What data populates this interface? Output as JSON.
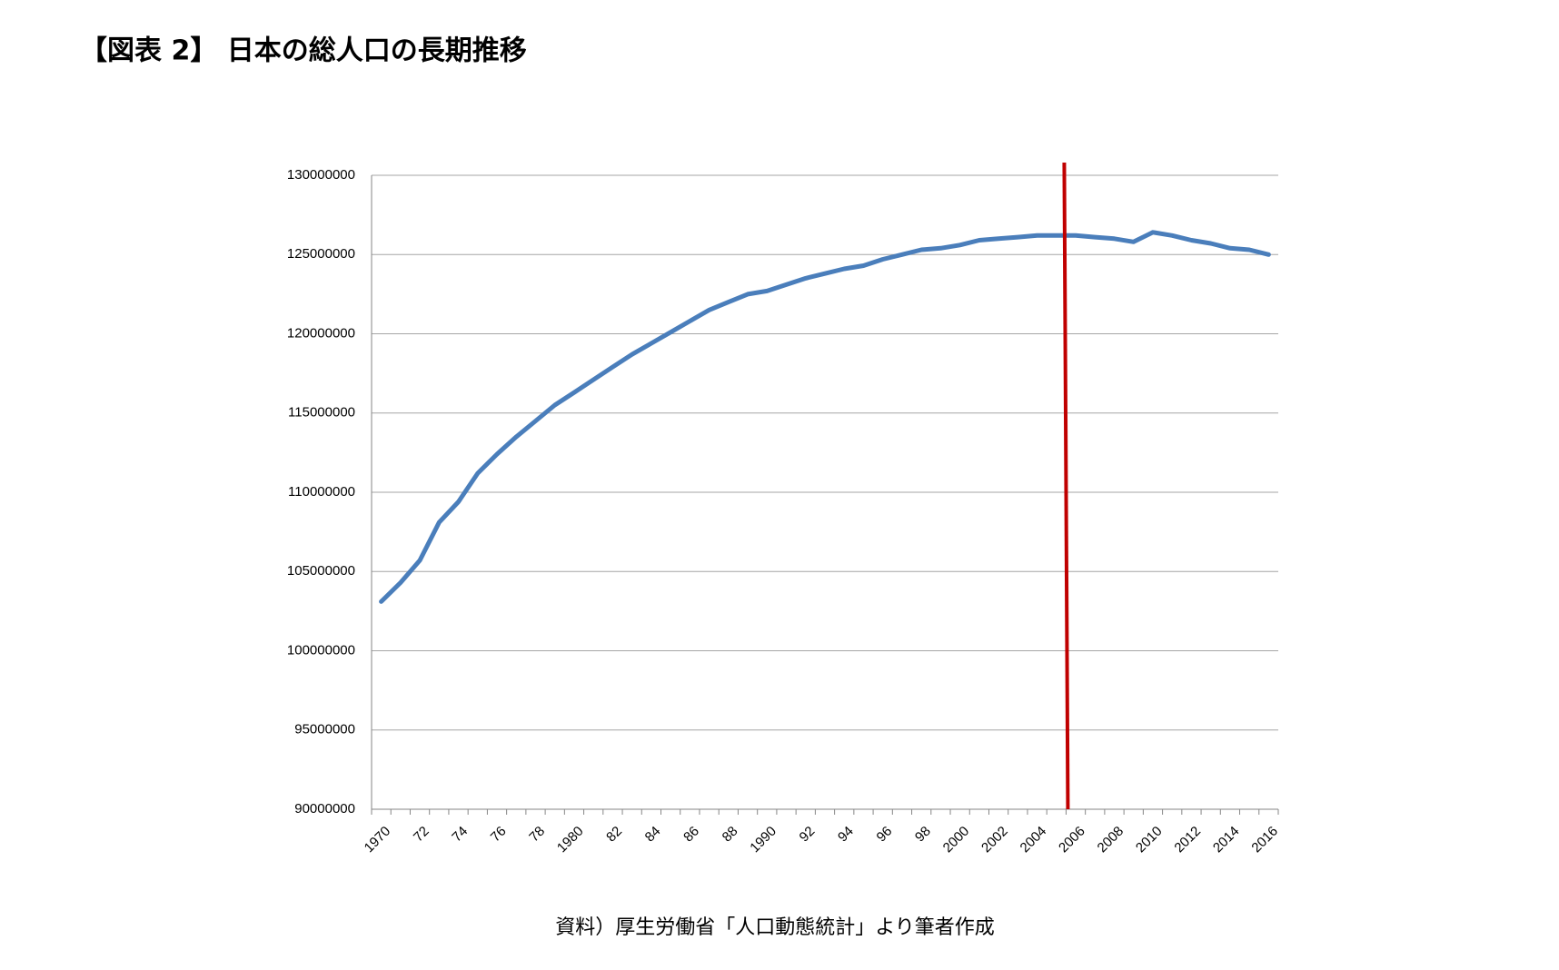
{
  "chart_data": {
    "type": "line",
    "title": "【図表 2】 日本の総人口の長期推移",
    "source": "資料）厚生労働省「人口動態統計」より筆者作成",
    "categories": [
      "1970",
      null,
      "72",
      null,
      "74",
      null,
      "76",
      null,
      "78",
      null,
      "1980",
      null,
      "82",
      null,
      "84",
      null,
      "86",
      null,
      "88",
      null,
      "1990",
      null,
      "92",
      null,
      "94",
      null,
      "96",
      null,
      "98",
      null,
      "2000",
      null,
      "2002",
      null,
      "2004",
      null,
      "2006",
      null,
      "2008",
      null,
      "2010",
      null,
      "2012",
      null,
      "2014",
      null,
      "2016"
    ],
    "values": [
      103100000,
      104300000,
      105700000,
      108100000,
      109400000,
      111200000,
      112400000,
      113500000,
      114500000,
      115500000,
      116300000,
      117100000,
      117900000,
      118700000,
      119400000,
      120100000,
      120800000,
      121500000,
      122000000,
      122500000,
      122700000,
      123100000,
      123500000,
      123800000,
      124100000,
      124300000,
      124700000,
      125000000,
      125300000,
      125400000,
      125600000,
      125900000,
      126000000,
      126100000,
      126200000,
      126200000,
      126200000,
      126100000,
      126000000,
      125800000,
      126400000,
      126200000,
      125900000,
      125700000,
      125400000,
      125300000,
      125000000
    ],
    "color": "#4a7ebb",
    "ylim": [
      90000000,
      130000000
    ],
    "yticks": [
      90000000,
      95000000,
      100000000,
      105000000,
      110000000,
      115000000,
      120000000,
      125000000,
      130000000
    ],
    "grid": true,
    "vertical_line": {
      "category_index": 35.5,
      "color": "#c00000"
    }
  }
}
